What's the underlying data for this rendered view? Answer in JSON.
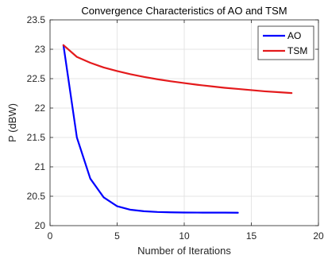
{
  "chart_data": {
    "type": "line",
    "title": "Convergence Characteristics of AO and TSM",
    "xlabel": "Number of Iterations",
    "ylabel": "P (dBW)",
    "xlim": [
      0,
      20
    ],
    "ylim": [
      20,
      23.5
    ],
    "xticks": [
      0,
      5,
      10,
      15,
      20
    ],
    "yticks": [
      20,
      20.5,
      21,
      21.5,
      22,
      22.5,
      23,
      23.5
    ],
    "grid": true,
    "legend_position": "top-right",
    "series": [
      {
        "name": "AO",
        "color": "#0000ff",
        "x": [
          1,
          2,
          3,
          4,
          5,
          6,
          7,
          8,
          9,
          10,
          11,
          12,
          13,
          14
        ],
        "y": [
          23.07,
          21.5,
          20.8,
          20.48,
          20.33,
          20.27,
          20.245,
          20.232,
          20.226,
          20.223,
          20.222,
          20.221,
          20.221,
          20.22
        ]
      },
      {
        "name": "TSM",
        "color": "#e41a1c",
        "x": [
          1,
          2,
          3,
          4,
          5,
          6,
          7,
          8,
          9,
          10,
          11,
          12,
          13,
          14,
          15,
          16,
          17,
          18
        ],
        "y": [
          23.07,
          22.87,
          22.77,
          22.69,
          22.63,
          22.575,
          22.53,
          22.49,
          22.455,
          22.425,
          22.395,
          22.37,
          22.345,
          22.325,
          22.305,
          22.285,
          22.27,
          22.255
        ]
      }
    ]
  }
}
